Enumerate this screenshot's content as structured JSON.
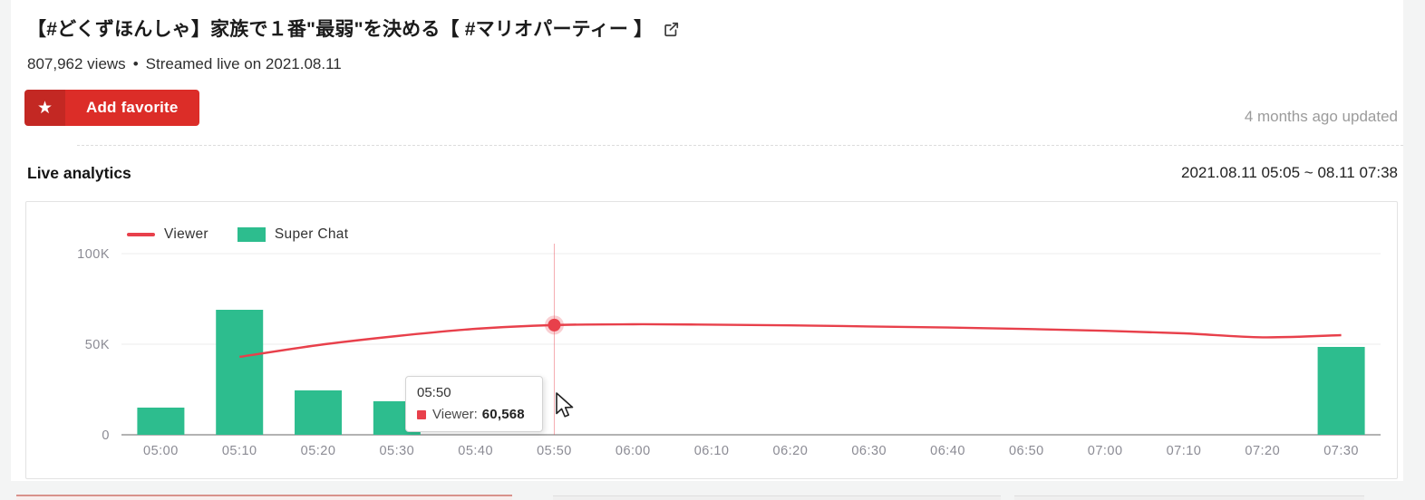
{
  "theme": {
    "brand_red": "#dc2d28",
    "brand_red_dark": "#c32823",
    "chart_line_red": "#e8404b",
    "chart_bar_green": "#2dbd8e",
    "page_background": "#f3f4f4"
  },
  "header": {
    "title": "【#どくずほんしゃ】家族で１番\"最弱\"を決める【 #マリオパーティー 】",
    "views": "807,962 views",
    "separator": "•",
    "streamed": "Streamed live on 2021.08.11",
    "favorite_button_label": "Add favorite",
    "star_icon": "★",
    "updated": "4 months ago updated"
  },
  "analytics": {
    "section_title": "Live analytics",
    "date_range": "2021.08.11 05:05 ~ 08.11 07:38"
  },
  "chart_data": {
    "type": "combo (line + bar)",
    "categories": [
      "05:00",
      "05:10",
      "05:20",
      "05:30",
      "05:40",
      "05:50",
      "06:00",
      "06:10",
      "06:20",
      "06:30",
      "06:40",
      "06:50",
      "07:00",
      "07:10",
      "07:20",
      "07:30"
    ],
    "series": [
      {
        "name": "Viewer",
        "type": "line",
        "color": "#e8404b",
        "values": [
          null,
          43000,
          49500,
          54500,
          58500,
          60568,
          61000,
          60800,
          60400,
          59800,
          59200,
          58400,
          57400,
          56000,
          53800,
          55000
        ]
      },
      {
        "name": "Super Chat",
        "type": "bar",
        "color": "#2dbd8e",
        "values": [
          15000,
          69000,
          24500,
          18500,
          0,
          0,
          0,
          0,
          0,
          0,
          0,
          0,
          0,
          0,
          0,
          48500
        ]
      }
    ],
    "ylim": [
      0,
      100000
    ],
    "yticks": [
      {
        "value": 0,
        "label": "0"
      },
      {
        "value": 50000,
        "label": "50K"
      },
      {
        "value": 100000,
        "label": "100K"
      }
    ],
    "grid": true,
    "legend_position": "top-left",
    "highlight": {
      "category": "05:50",
      "index": 5,
      "series": "Viewer",
      "value": 60568
    },
    "tooltip": {
      "title": "05:50",
      "series_label": "Viewer:",
      "value": "60,568",
      "marker_color": "#e8404b"
    }
  }
}
